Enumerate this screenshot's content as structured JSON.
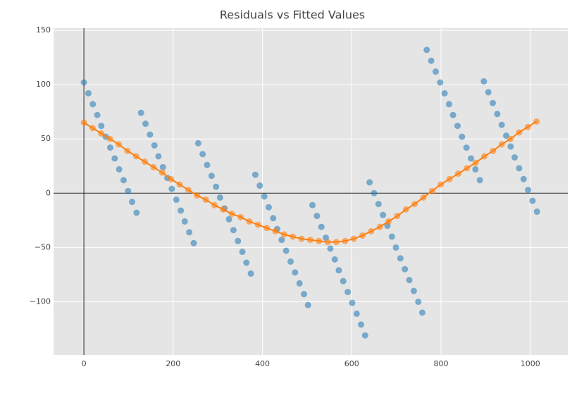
{
  "chart_data": {
    "type": "scatter",
    "title": "Residuals vs Fitted Values",
    "xlim": [
      -68,
      1084
    ],
    "ylim": [
      -149,
      152
    ],
    "xticks": [
      0,
      200,
      400,
      600,
      800,
      1000
    ],
    "yticks": [
      {
        "value": -100,
        "label": "−100"
      },
      {
        "value": -50,
        "label": "−50"
      },
      0,
      50,
      100,
      150
    ],
    "grid": true,
    "zero_lines": true,
    "series": [
      {
        "type": "scatter",
        "color": "#1f77b4",
        "x": [
          0,
          10,
          20,
          30,
          39,
          49,
          59,
          69,
          79,
          89,
          99,
          108,
          118,
          128,
          138,
          148,
          158,
          167,
          177,
          187,
          197,
          207,
          217,
          226,
          236,
          246,
          256,
          266,
          276,
          286,
          296,
          305,
          315,
          325,
          335,
          345,
          355,
          364,
          374,
          384,
          394,
          404,
          414,
          424,
          433,
          443,
          453,
          463,
          473,
          483,
          493,
          502,
          512,
          522,
          532,
          542,
          552,
          562,
          571,
          581,
          591,
          601,
          611,
          621,
          630,
          640,
          650,
          660,
          670,
          680,
          690,
          699,
          709,
          719,
          729,
          739,
          749,
          758,
          768,
          778,
          788,
          798,
          808,
          818,
          827,
          837,
          847,
          857,
          867,
          877,
          887,
          896,
          906,
          916,
          926,
          936,
          946,
          956,
          965,
          975,
          985,
          995,
          1005,
          1015
        ],
        "values": [
          102,
          92,
          82,
          72,
          62,
          52,
          42,
          32,
          22,
          12,
          2,
          -8,
          -18,
          74,
          64,
          54,
          44,
          34,
          24,
          14,
          4,
          -6,
          -16,
          -26,
          -36,
          -46,
          46,
          36,
          26,
          16,
          6,
          -4,
          -14,
          -24,
          -34,
          -44,
          -54,
          -64,
          -74,
          17,
          7,
          -3,
          -13,
          -23,
          -33,
          -43,
          -53,
          -63,
          -73,
          -83,
          -93,
          -103,
          -11,
          -21,
          -31,
          -41,
          -51,
          -61,
          -71,
          -81,
          -91,
          -101,
          -111,
          -121,
          -131,
          10,
          0,
          -10,
          -20,
          -30,
          -40,
          -50,
          -60,
          -70,
          -80,
          -90,
          -100,
          -110,
          132,
          122,
          112,
          102,
          92,
          82,
          72,
          62,
          52,
          42,
          32,
          22,
          12,
          103,
          93,
          83,
          73,
          63,
          53,
          43,
          33,
          23,
          13,
          3,
          -7,
          -17
        ]
      },
      {
        "type": "line",
        "color": "#ff7f0e",
        "x": [
          0,
          19.5,
          39,
          58.5,
          78,
          97.5,
          117,
          136.5,
          156,
          175.5,
          195,
          214.5,
          234,
          253.5,
          273,
          292.5,
          312,
          331.5,
          351,
          370.5,
          390,
          409.5,
          429,
          448.5,
          468,
          487.5,
          507,
          526.5,
          546,
          565.5,
          585,
          604.5,
          624,
          643.5,
          663,
          682.5,
          702,
          721.5,
          741,
          760.5,
          780,
          799.5,
          819,
          838.5,
          858,
          877.5,
          897,
          916.5,
          936,
          955.5,
          975,
          994.5,
          1014
        ],
        "values": [
          65,
          60,
          55,
          50,
          45,
          39,
          34,
          29,
          24,
          19,
          13,
          8,
          3,
          -2,
          -6,
          -11,
          -15,
          -19,
          -22,
          -26,
          -29,
          -32,
          -35,
          -38,
          -40,
          -42,
          -43,
          -44,
          -45,
          -45,
          -44,
          -42,
          -39,
          -35,
          -31,
          -26,
          -21,
          -15,
          -10,
          -4,
          2,
          8,
          13,
          18,
          23,
          28,
          34,
          39,
          45,
          50,
          56,
          61,
          66
        ]
      }
    ]
  }
}
